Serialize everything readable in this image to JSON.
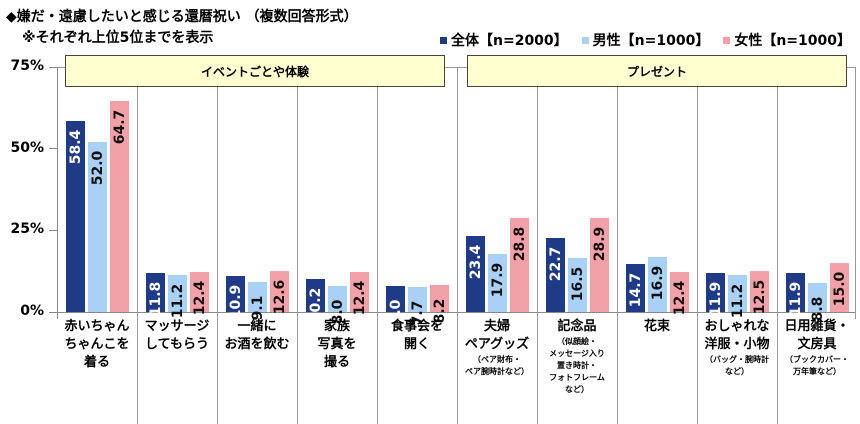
{
  "title": "◆嫌だ・遠慮したいと感じる還暦祝い （複数回答形式）",
  "subtitle": "※それぞれ上位5位までを表示",
  "legend": [
    {
      "label": "全体【n=2000】",
      "color": "#1f3b87"
    },
    {
      "label": "男性【n=1000】",
      "color": "#a9d0f5"
    },
    {
      "label": "女性【n=1000】",
      "color": "#f4a0a8"
    }
  ],
  "y_ticks": [
    "75%",
    "50%",
    "25%",
    "0%"
  ],
  "groups": [
    {
      "label": "イベントごとや体験"
    },
    {
      "label": "プレゼント"
    }
  ],
  "chart_data": {
    "type": "bar",
    "title": "◆嫌だ・遠慮したいと感じる還暦祝い （複数回答形式）",
    "subtitle": "※それぞれ上位5位までを表示",
    "xlabel": "",
    "ylabel": "",
    "ylim": [
      0,
      75
    ],
    "yticks": [
      "0%",
      "25%",
      "50%",
      "75%"
    ],
    "groups": [
      {
        "label": "イベントごとや体験",
        "categories": [
          0,
          1,
          2,
          3,
          4
        ]
      },
      {
        "label": "プレゼント",
        "categories": [
          5,
          6,
          7,
          8,
          9
        ]
      }
    ],
    "categories": [
      {
        "label": "赤いちゃんちゃんこを着る",
        "note": ""
      },
      {
        "label": "マッサージしてもらう",
        "note": ""
      },
      {
        "label": "一緒にお酒を飲む",
        "note": ""
      },
      {
        "label": "家族写真を撮る",
        "note": ""
      },
      {
        "label": "食事会を開く",
        "note": ""
      },
      {
        "label": "夫婦ペアグッズ",
        "note": "（ペア財布・ペア腕時計など）"
      },
      {
        "label": "記念品",
        "note": "（似顔絵・メッセージ入り置き時計・フォトフレームなど）"
      },
      {
        "label": "花束",
        "note": ""
      },
      {
        "label": "おしゃれな洋服・小物",
        "note": "（バッグ・腕時計など）"
      },
      {
        "label": "日用雑貨・文房具",
        "note": "（ブックカバー・万年筆など）"
      }
    ],
    "series": [
      {
        "name": "全体【n=2000】",
        "color": "#1f3b87",
        "values": [
          58.4,
          11.8,
          10.9,
          10.2,
          8.0,
          23.4,
          22.7,
          14.7,
          11.9,
          11.9
        ]
      },
      {
        "name": "男性【n=1000】",
        "color": "#a9d0f5",
        "values": [
          52.0,
          11.2,
          9.1,
          8.0,
          7.7,
          17.9,
          16.5,
          16.9,
          11.2,
          8.8
        ]
      },
      {
        "name": "女性【n=1000】",
        "color": "#f4a0a8",
        "values": [
          64.7,
          12.4,
          12.6,
          12.4,
          8.2,
          28.8,
          28.9,
          12.4,
          12.5,
          15.0
        ]
      }
    ],
    "legend_position": "top-right",
    "grid": false
  },
  "cat_lines": [
    [
      "赤いちゃん",
      "ちゃんこを",
      "着る"
    ],
    [
      "マッサージ",
      "してもらう"
    ],
    [
      "一緒に",
      "お酒を飲む"
    ],
    [
      "家族",
      "写真を",
      "撮る"
    ],
    [
      "食事会を",
      "開く"
    ],
    [
      "夫婦",
      "ペアグッズ"
    ],
    [
      "記念品"
    ],
    [
      "花束"
    ],
    [
      "おしゃれな",
      "洋服・小物"
    ],
    [
      "日用雑貨・",
      "文房具"
    ]
  ],
  "cat_notes": [
    [],
    [],
    [],
    [],
    [],
    [
      "（ペア財布・",
      "ペア腕時計など）"
    ],
    [
      "（似顔絵・",
      "メッセージ入り",
      "置き時計・",
      "フォトフレーム",
      "など）"
    ],
    [],
    [
      "（バッグ・腕時計",
      "など）"
    ],
    [
      "（ブックカバー・",
      "万年筆など）"
    ]
  ]
}
